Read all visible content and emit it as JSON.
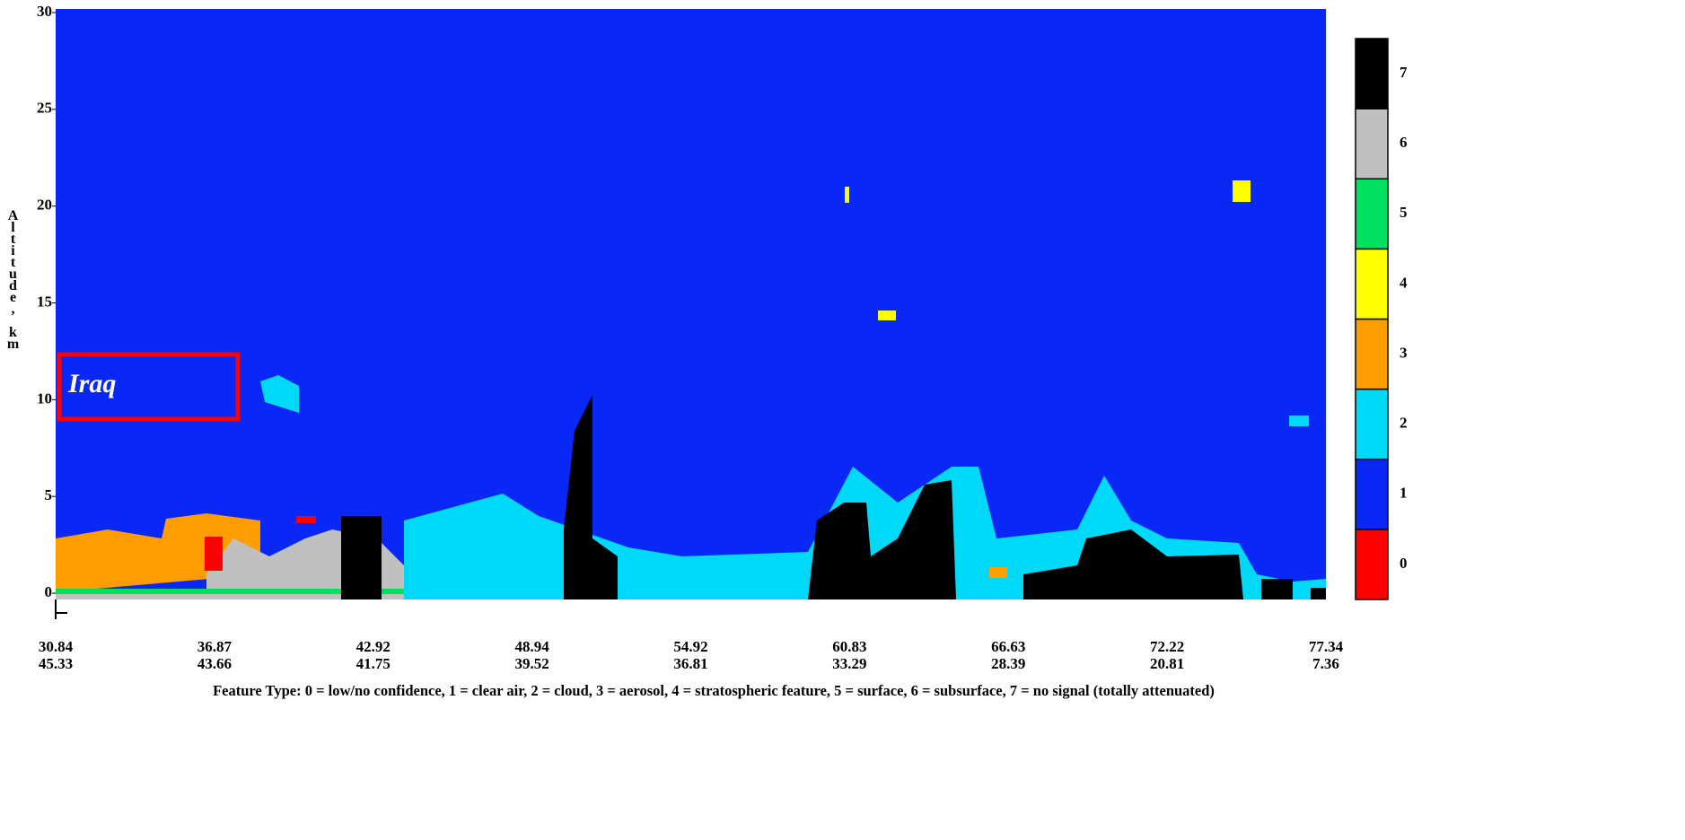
{
  "chart_data": {
    "type": "curtain",
    "y_label": "Altitude, km",
    "ylim": [
      -0.3,
      30
    ],
    "yticks": [
      0,
      5,
      10,
      15,
      20,
      25,
      30
    ],
    "x_labels": {
      "latitude": [
        30.84,
        36.87,
        42.92,
        48.94,
        54.92,
        60.83,
        66.63,
        72.22,
        77.34
      ],
      "longitude": [
        45.33,
        43.66,
        41.75,
        39.52,
        36.81,
        33.29,
        28.39,
        20.81,
        7.36
      ]
    },
    "annotation": "Iraq",
    "colorbar": {
      "ticks": [
        0,
        1,
        2,
        3,
        4,
        5,
        6,
        7
      ],
      "colors": [
        "#ff0000",
        "#0a28f5",
        "#00d8f8",
        "#ff9d00",
        "#ffff00",
        "#00e060",
        "#c0c0c0",
        "#000000"
      ]
    },
    "caption": "Feature Type: 0 = low/no confidence, 1 = clear air, 2 = cloud, 3 = aerosol, 4 = stratospheric feature, 5 = surface, 6 = subsurface, 7 = no signal (totally attenuated)"
  }
}
